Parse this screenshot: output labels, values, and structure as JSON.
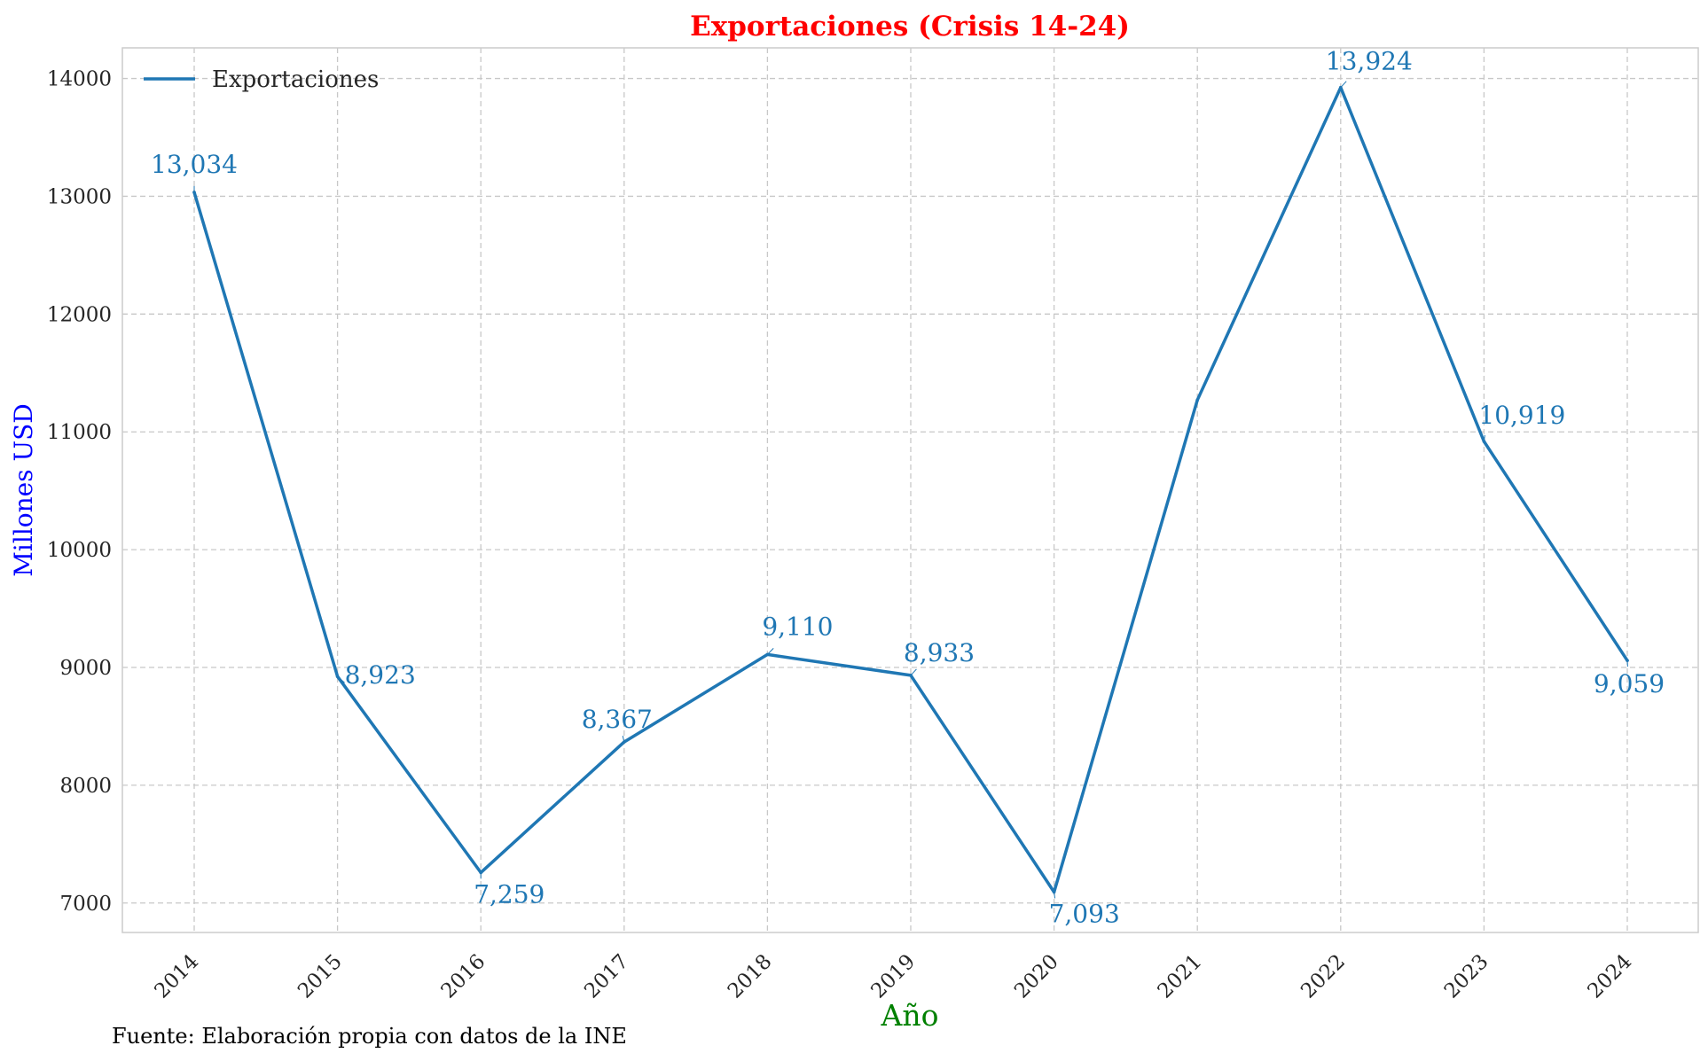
{
  "chart_data": {
    "type": "line",
    "title": "Exportaciones (Crisis 14-24)",
    "xlabel": "Año",
    "ylabel": "Millones USD",
    "x": [
      "2014",
      "2015",
      "2016",
      "2017",
      "2018",
      "2019",
      "2020",
      "2021",
      "2022",
      "2023",
      "2024"
    ],
    "series": [
      {
        "name": "Exportaciones",
        "values": [
          13034,
          8923,
          7259,
          8367,
          9110,
          8933,
          7093,
          11270,
          13924,
          10919,
          9059
        ]
      }
    ],
    "data_labels": [
      {
        "x": "2014",
        "text": "13,034"
      },
      {
        "x": "2015",
        "text": "8,923"
      },
      {
        "x": "2016",
        "text": "7,259"
      },
      {
        "x": "2017",
        "text": "8,367"
      },
      {
        "x": "2018",
        "text": "9,110"
      },
      {
        "x": "2019",
        "text": "8,933"
      },
      {
        "x": "2020",
        "text": "7,093"
      },
      {
        "x": "2022",
        "text": "13,924"
      },
      {
        "x": "2023",
        "text": "10,919"
      },
      {
        "x": "2024",
        "text": "9,059"
      }
    ],
    "yticks": [
      7000,
      8000,
      9000,
      10000,
      11000,
      12000,
      13000,
      14000
    ],
    "ylim": [
      6750,
      14260
    ],
    "grid": true,
    "legend_position": "top-left",
    "colors": {
      "line": "#1f77b4",
      "title": "#ff0000",
      "xlabel": "#008000",
      "ylabel": "#0000ff",
      "grid": "#c8c8c8"
    }
  },
  "source_note": "Fuente: Elaboración propia con datos de la INE"
}
